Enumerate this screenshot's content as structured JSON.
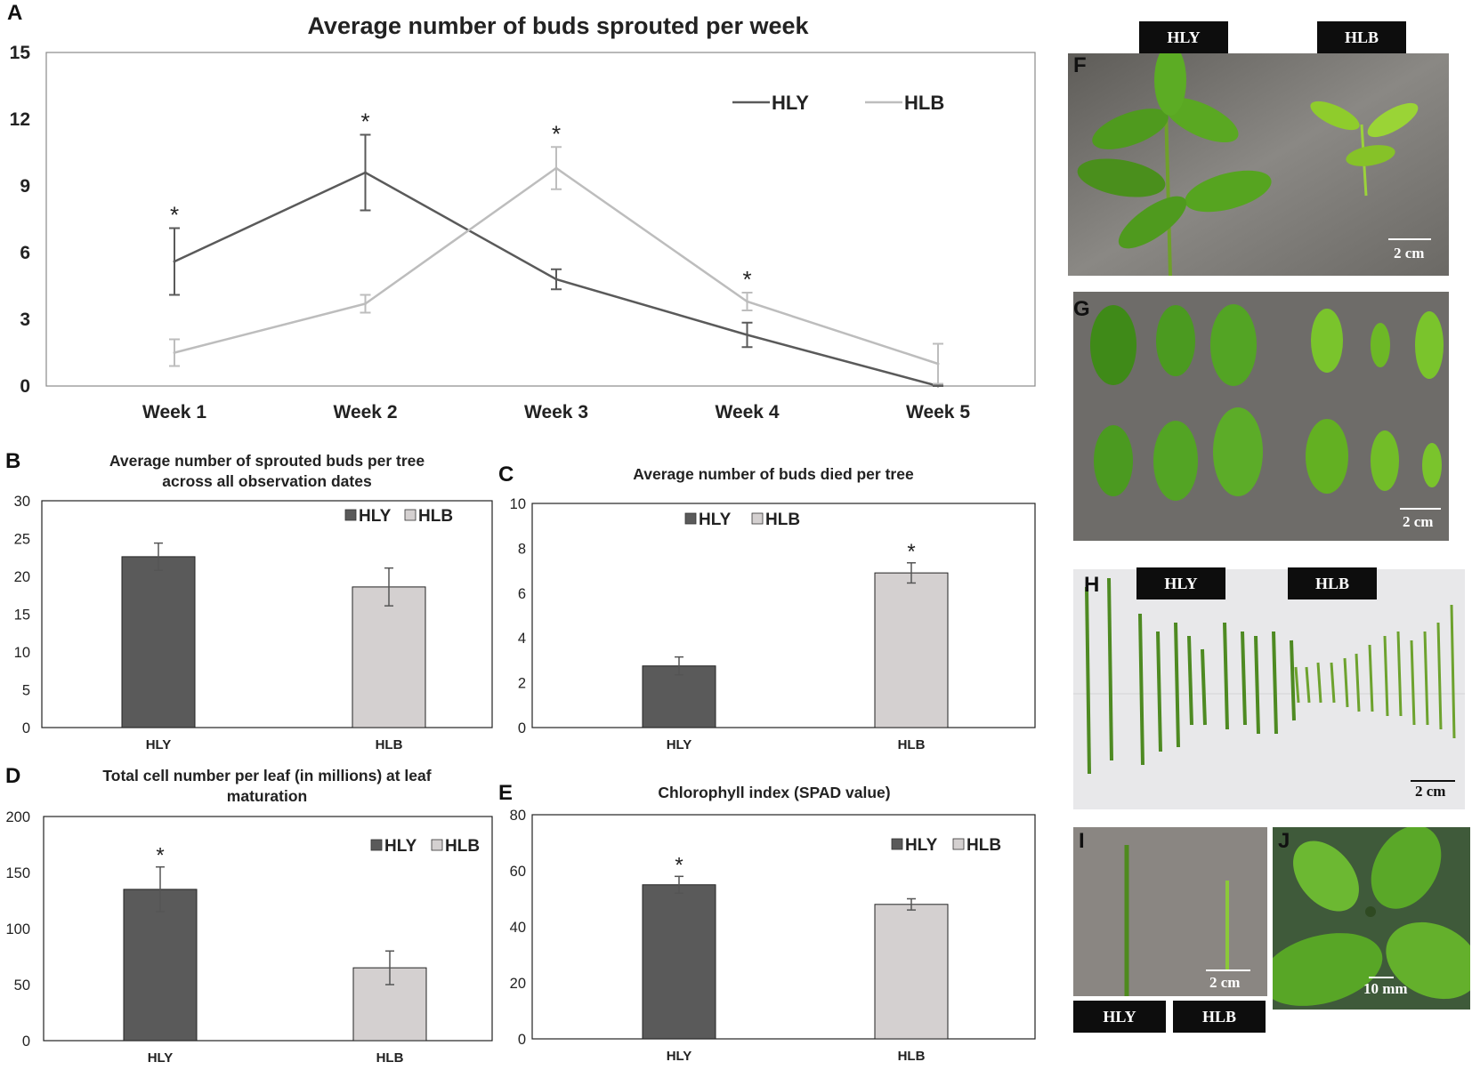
{
  "panels": {
    "A": "A",
    "B": "B",
    "C": "C",
    "D": "D",
    "E": "E",
    "F": "F",
    "G": "G",
    "H": "H",
    "I": "I",
    "J": "J"
  },
  "colors": {
    "hly": "#5a5a5a",
    "hlb": "#d4d0d0",
    "hlb_line": "#bdbdbd",
    "bg": "#ffffff"
  },
  "chart_data": [
    {
      "id": "A",
      "type": "line",
      "title": "Average number of buds sprouted per week",
      "categories": [
        "Week 1",
        "Week 2",
        "Week 3",
        "Week 4",
        "Week 5"
      ],
      "ylim": [
        0,
        15
      ],
      "yticks": [
        0,
        3,
        6,
        9,
        12,
        15
      ],
      "legend_position": "top-right",
      "series": [
        {
          "name": "HLY",
          "values": [
            5.6,
            9.6,
            4.8,
            2.3,
            0.0
          ],
          "errors": [
            1.5,
            1.7,
            0.45,
            0.55,
            0.05
          ]
        },
        {
          "name": "HLB",
          "values": [
            1.5,
            3.7,
            9.8,
            3.8,
            1.0
          ],
          "errors": [
            0.6,
            0.4,
            0.95,
            0.4,
            0.9
          ]
        }
      ],
      "annotations": [
        {
          "text": "*",
          "category": "Week 1",
          "series": "HLY"
        },
        {
          "text": "*",
          "category": "Week 2",
          "series": "HLY"
        },
        {
          "text": "*",
          "category": "Week 3",
          "series": "HLB"
        },
        {
          "text": "*",
          "category": "Week 4",
          "series": "HLB"
        }
      ]
    },
    {
      "id": "B",
      "type": "bar",
      "title": [
        "Average number of sprouted buds per tree",
        "across all observation dates"
      ],
      "categories": [
        "HLY",
        "HLB"
      ],
      "values": [
        22.6,
        18.6
      ],
      "errors": [
        1.8,
        2.5
      ],
      "ylim": [
        0,
        30
      ],
      "yticks": [
        0,
        5,
        10,
        15,
        20,
        25,
        30
      ],
      "legend_position": "top-right",
      "annotations": []
    },
    {
      "id": "C",
      "type": "bar",
      "title": [
        "Average number of buds died per tree"
      ],
      "categories": [
        "HLY",
        "HLB"
      ],
      "values": [
        2.75,
        6.9
      ],
      "errors": [
        0.4,
        0.45
      ],
      "ylim": [
        0,
        10
      ],
      "yticks": [
        0,
        2,
        4,
        6,
        8,
        10
      ],
      "legend_position": "top-left",
      "annotations": [
        {
          "text": "*",
          "category": "HLB"
        }
      ]
    },
    {
      "id": "D",
      "type": "bar",
      "title": [
        "Total cell number per leaf (in millions) at leaf",
        "maturation"
      ],
      "categories": [
        "HLY",
        "HLB"
      ],
      "values": [
        135,
        65
      ],
      "errors": [
        20,
        15
      ],
      "ylim": [
        0,
        200
      ],
      "yticks": [
        0,
        50,
        100,
        150,
        200
      ],
      "legend_position": "top-right",
      "annotations": [
        {
          "text": "*",
          "category": "HLY"
        }
      ]
    },
    {
      "id": "E",
      "type": "bar",
      "title": [
        "Chlorophyll index (SPAD value)"
      ],
      "categories": [
        "HLY",
        "HLB"
      ],
      "values": [
        55,
        48
      ],
      "errors": [
        3,
        2
      ],
      "ylim": [
        0,
        80
      ],
      "yticks": [
        0,
        20,
        40,
        60,
        80
      ],
      "legend_position": "top-right",
      "annotations": [
        {
          "text": "*",
          "category": "HLY"
        }
      ]
    }
  ],
  "photos": {
    "F": {
      "tags": [
        "HLY",
        "HLB"
      ],
      "scale": "2 cm"
    },
    "G": {
      "scale": "2 cm"
    },
    "H": {
      "tags": [
        "HLY",
        "HLB"
      ],
      "scale": "2 cm"
    },
    "I": {
      "tags": [
        "HLY",
        "HLB"
      ],
      "scale": "2 cm"
    },
    "J": {
      "scale": "10 mm"
    }
  }
}
